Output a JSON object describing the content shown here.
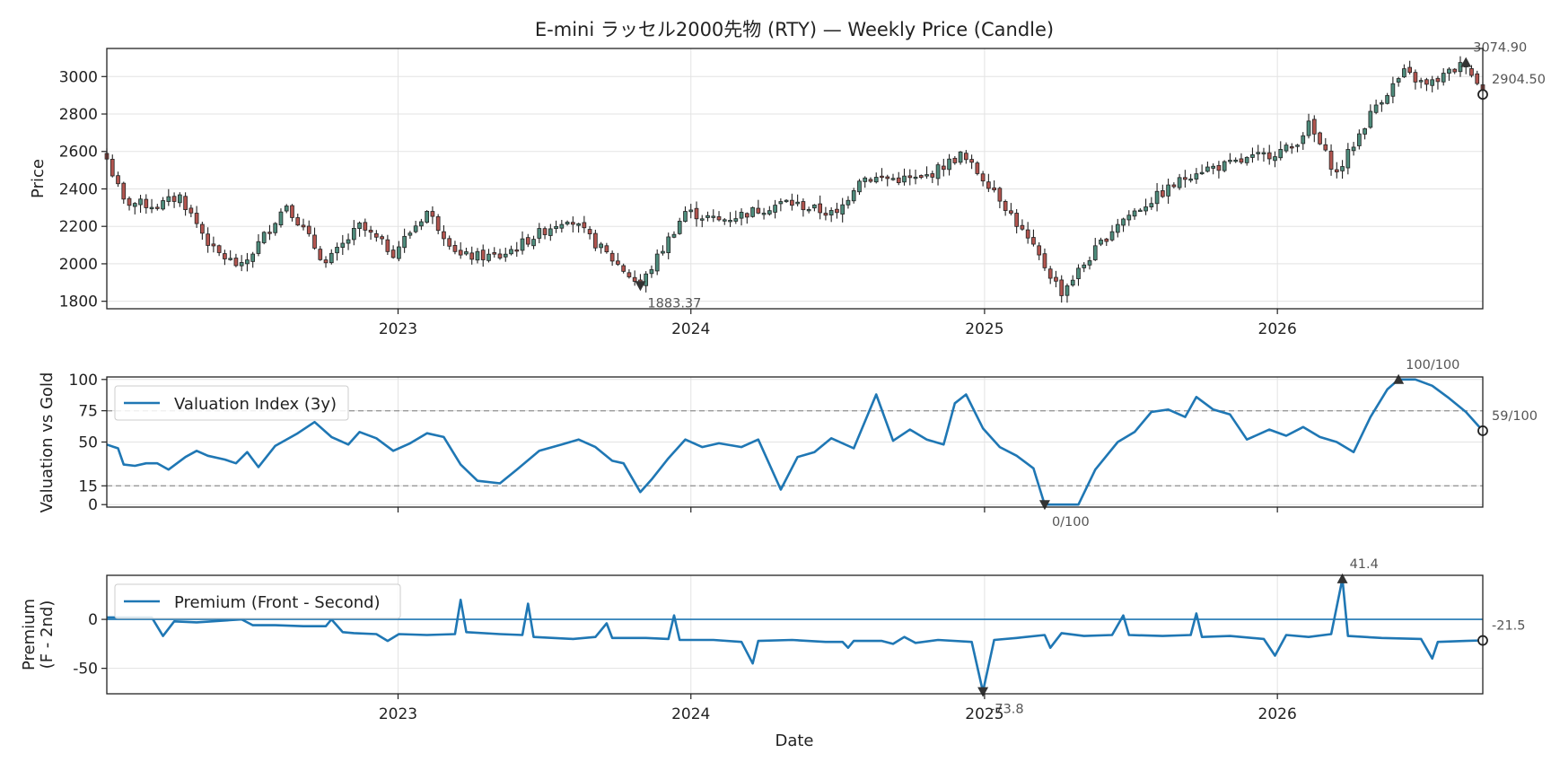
{
  "chart_data": [
    {
      "type": "candlestick",
      "title": "E-mini ラッセル2000先物 (RTY) — Weekly Price (Candle)",
      "ylabel": "Price",
      "xlabel": "",
      "x_ticks": [
        "2023",
        "2024",
        "2025",
        "2026"
      ],
      "y_ticks": [
        1800,
        2000,
        2200,
        2400,
        2600,
        2800,
        3000
      ],
      "ylim": [
        1760,
        3150
      ],
      "x_range": [
        "2022-01-03",
        "2026-09-14"
      ],
      "grid": true,
      "up_color": "#4e8c7c",
      "down_color": "#b3554f",
      "close_keypoints": [
        [
          "2022-01-03",
          2560
        ],
        [
          "2022-01-24",
          2330
        ],
        [
          "2022-03-07",
          2310
        ],
        [
          "2022-04-04",
          2360
        ],
        [
          "2022-05-16",
          2070
        ],
        [
          "2022-06-20",
          1980
        ],
        [
          "2022-08-15",
          2320
        ],
        [
          "2022-10-03",
          2000
        ],
        [
          "2022-11-14",
          2200
        ],
        [
          "2022-12-26",
          2060
        ],
        [
          "2023-02-06",
          2280
        ],
        [
          "2023-03-20",
          2040
        ],
        [
          "2023-05-08",
          2040
        ],
        [
          "2023-07-31",
          2250
        ],
        [
          "2023-10-30",
          1883
        ],
        [
          "2023-12-25",
          2280
        ],
        [
          "2024-02-05",
          2230
        ],
        [
          "2024-04-29",
          2330
        ],
        [
          "2024-07-01",
          2260
        ],
        [
          "2024-07-29",
          2460
        ],
        [
          "2024-10-14",
          2450
        ],
        [
          "2024-12-02",
          2580
        ],
        [
          "2025-01-13",
          2400
        ],
        [
          "2025-04-07",
          1850
        ],
        [
          "2025-06-16",
          2220
        ],
        [
          "2025-09-22",
          2500
        ],
        [
          "2025-11-03",
          2530
        ],
        [
          "2026-01-19",
          2620
        ],
        [
          "2026-02-09",
          2740
        ],
        [
          "2026-03-16",
          2480
        ],
        [
          "2026-05-04",
          2850
        ],
        [
          "2026-06-08",
          3020
        ],
        [
          "2026-07-06",
          2950
        ],
        [
          "2026-08-24",
          3074.9
        ],
        [
          "2026-09-14",
          2904.5
        ]
      ],
      "annotations": [
        {
          "label": "3074.90",
          "date": "2026-08-24",
          "value": 3074.9,
          "marker": "max"
        },
        {
          "label": "2904.50",
          "date": "2026-09-14",
          "value": 2904.5,
          "marker": "last"
        },
        {
          "label": "1883.37",
          "date": "2023-10-30",
          "value": 1883.37,
          "marker": "min"
        }
      ]
    },
    {
      "type": "line",
      "ylabel": "Valuation vs Gold",
      "y_ticks": [
        0,
        15,
        50,
        75,
        100
      ],
      "ylim": [
        -2,
        102
      ],
      "reference_lines": [
        75,
        15
      ],
      "grid": true,
      "legend": "top-left",
      "series": [
        {
          "name": "Valuation Index (3y)",
          "color": "#1f77b4",
          "points": [
            [
              "2022-01-03",
              48
            ],
            [
              "2022-01-17",
              45
            ],
            [
              "2022-01-24",
              32
            ],
            [
              "2022-02-07",
              31
            ],
            [
              "2022-02-21",
              33
            ],
            [
              "2022-03-07",
              33
            ],
            [
              "2022-03-21",
              28
            ],
            [
              "2022-04-11",
              38
            ],
            [
              "2022-04-25",
              43
            ],
            [
              "2022-05-09",
              39
            ],
            [
              "2022-05-30",
              36
            ],
            [
              "2022-06-13",
              33
            ],
            [
              "2022-06-27",
              42
            ],
            [
              "2022-07-11",
              30
            ],
            [
              "2022-08-01",
              47
            ],
            [
              "2022-08-29",
              57
            ],
            [
              "2022-09-19",
              66
            ],
            [
              "2022-10-10",
              54
            ],
            [
              "2022-10-31",
              48
            ],
            [
              "2022-11-14",
              58
            ],
            [
              "2022-12-05",
              53
            ],
            [
              "2022-12-26",
              43
            ],
            [
              "2023-01-16",
              49
            ],
            [
              "2023-02-06",
              57
            ],
            [
              "2023-02-27",
              54
            ],
            [
              "2023-03-20",
              32
            ],
            [
              "2023-04-10",
              19
            ],
            [
              "2023-05-08",
              17
            ],
            [
              "2023-05-29",
              28
            ],
            [
              "2023-06-26",
              43
            ],
            [
              "2023-07-24",
              48
            ],
            [
              "2023-08-14",
              52
            ],
            [
              "2023-09-04",
              46
            ],
            [
              "2023-09-25",
              35
            ],
            [
              "2023-10-09",
              33
            ],
            [
              "2023-10-30",
              10
            ],
            [
              "2023-11-13",
              20
            ],
            [
              "2023-12-04",
              37
            ],
            [
              "2023-12-25",
              52
            ],
            [
              "2024-01-15",
              46
            ],
            [
              "2024-02-05",
              49
            ],
            [
              "2024-03-04",
              46
            ],
            [
              "2024-03-25",
              52
            ],
            [
              "2024-04-22",
              12
            ],
            [
              "2024-05-13",
              38
            ],
            [
              "2024-06-03",
              42
            ],
            [
              "2024-06-24",
              53
            ],
            [
              "2024-07-22",
              45
            ],
            [
              "2024-08-19",
              88
            ],
            [
              "2024-09-09",
              51
            ],
            [
              "2024-09-30",
              60
            ],
            [
              "2024-10-21",
              52
            ],
            [
              "2024-11-11",
              48
            ],
            [
              "2024-11-25",
              81
            ],
            [
              "2024-12-09",
              88
            ],
            [
              "2024-12-30",
              61
            ],
            [
              "2025-01-20",
              46
            ],
            [
              "2025-02-10",
              39
            ],
            [
              "2025-03-03",
              29
            ],
            [
              "2025-03-17",
              0
            ],
            [
              "2025-04-14",
              0
            ],
            [
              "2025-04-28",
              0
            ],
            [
              "2025-05-19",
              28
            ],
            [
              "2025-06-16",
              50
            ],
            [
              "2025-07-07",
              58
            ],
            [
              "2025-07-28",
              74
            ],
            [
              "2025-08-18",
              76
            ],
            [
              "2025-09-08",
              70
            ],
            [
              "2025-09-22",
              86
            ],
            [
              "2025-10-13",
              76
            ],
            [
              "2025-11-03",
              72
            ],
            [
              "2025-11-24",
              52
            ],
            [
              "2025-12-22",
              60
            ],
            [
              "2026-01-12",
              55
            ],
            [
              "2026-02-02",
              62
            ],
            [
              "2026-02-23",
              54
            ],
            [
              "2026-03-16",
              50
            ],
            [
              "2026-04-06",
              42
            ],
            [
              "2026-04-27",
              70
            ],
            [
              "2026-05-18",
              92
            ],
            [
              "2026-06-01",
              100
            ],
            [
              "2026-06-22",
              100
            ],
            [
              "2026-07-13",
              95
            ],
            [
              "2026-08-03",
              85
            ],
            [
              "2026-08-24",
              74
            ],
            [
              "2026-09-14",
              59
            ]
          ]
        }
      ],
      "annotations": [
        {
          "label": "100/100",
          "date": "2026-06-01",
          "value": 100,
          "marker": "max"
        },
        {
          "label": "0/100",
          "date": "2025-03-17",
          "value": 0,
          "marker": "min"
        },
        {
          "label": "59/100",
          "date": "2026-09-14",
          "value": 59,
          "marker": "last"
        }
      ]
    },
    {
      "type": "line",
      "ylabel": "Premium\n(F - 2nd)",
      "xlabel": "Date",
      "x_ticks": [
        "2023",
        "2024",
        "2025",
        "2026"
      ],
      "y_ticks": [
        -50,
        0
      ],
      "ylim": [
        -76,
        45
      ],
      "reference_lines": [
        0
      ],
      "grid": true,
      "legend": "top-left",
      "series": [
        {
          "name": "Premium (Front - Second)",
          "color": "#1f77b4",
          "points": [
            [
              "2022-01-03",
              2
            ],
            [
              "2022-02-28",
              2
            ],
            [
              "2022-03-14",
              -17
            ],
            [
              "2022-03-28",
              -2
            ],
            [
              "2022-04-25",
              -3
            ],
            [
              "2022-06-20",
              0
            ],
            [
              "2022-07-04",
              -6
            ],
            [
              "2022-08-01",
              -6
            ],
            [
              "2022-09-05",
              -7
            ],
            [
              "2022-10-03",
              -7
            ],
            [
              "2022-10-10",
              0
            ],
            [
              "2022-10-24",
              -13
            ],
            [
              "2022-11-07",
              -14
            ],
            [
              "2022-12-05",
              -15
            ],
            [
              "2022-12-19",
              -22
            ],
            [
              "2023-01-02",
              -15
            ],
            [
              "2023-02-06",
              -16
            ],
            [
              "2023-03-13",
              -15
            ],
            [
              "2023-03-20",
              20
            ],
            [
              "2023-03-27",
              -13
            ],
            [
              "2023-05-08",
              -15
            ],
            [
              "2023-06-05",
              -16
            ],
            [
              "2023-06-12",
              16
            ],
            [
              "2023-06-19",
              -18
            ],
            [
              "2023-08-07",
              -20
            ],
            [
              "2023-09-04",
              -18
            ],
            [
              "2023-09-18",
              -4
            ],
            [
              "2023-09-25",
              -19
            ],
            [
              "2023-11-06",
              -19
            ],
            [
              "2023-12-04",
              -20
            ],
            [
              "2023-12-11",
              4
            ],
            [
              "2023-12-18",
              -21
            ],
            [
              "2024-01-29",
              -21
            ],
            [
              "2024-03-04",
              -23
            ],
            [
              "2024-03-18",
              -45
            ],
            [
              "2024-03-25",
              -22
            ],
            [
              "2024-05-06",
              -21
            ],
            [
              "2024-06-17",
              -23
            ],
            [
              "2024-07-08",
              -23
            ],
            [
              "2024-07-15",
              -29
            ],
            [
              "2024-07-22",
              -22
            ],
            [
              "2024-08-26",
              -22
            ],
            [
              "2024-09-09",
              -25
            ],
            [
              "2024-09-23",
              -18
            ],
            [
              "2024-10-07",
              -24
            ],
            [
              "2024-11-04",
              -21
            ],
            [
              "2024-12-16",
              -23
            ],
            [
              "2024-12-30",
              -73.8
            ],
            [
              "2025-01-13",
              -21
            ],
            [
              "2025-02-10",
              -19
            ],
            [
              "2025-03-17",
              -16
            ],
            [
              "2025-03-24",
              -29
            ],
            [
              "2025-04-07",
              -14
            ],
            [
              "2025-05-05",
              -17
            ],
            [
              "2025-06-09",
              -16
            ],
            [
              "2025-06-23",
              4
            ],
            [
              "2025-06-30",
              -16
            ],
            [
              "2025-08-11",
              -17
            ],
            [
              "2025-09-15",
              -16
            ],
            [
              "2025-09-22",
              6
            ],
            [
              "2025-09-29",
              -18
            ],
            [
              "2025-11-03",
              -17
            ],
            [
              "2025-12-15",
              -20
            ],
            [
              "2025-12-29",
              -37
            ],
            [
              "2026-01-12",
              -16
            ],
            [
              "2026-02-09",
              -18
            ],
            [
              "2026-03-09",
              -15
            ],
            [
              "2026-03-23",
              41.4
            ],
            [
              "2026-03-30",
              -17
            ],
            [
              "2026-05-11",
              -19
            ],
            [
              "2026-06-29",
              -20
            ],
            [
              "2026-07-13",
              -40
            ],
            [
              "2026-07-20",
              -23
            ],
            [
              "2026-08-24",
              -22
            ],
            [
              "2026-09-14",
              -21.5
            ]
          ]
        }
      ],
      "annotations": [
        {
          "label": "41.4",
          "date": "2026-03-23",
          "value": 41.4,
          "marker": "max"
        },
        {
          "label": "-73.8",
          "date": "2024-12-30",
          "value": -73.8,
          "marker": "min"
        },
        {
          "label": "-21.5",
          "date": "2026-09-14",
          "value": -21.5,
          "marker": "last"
        }
      ]
    }
  ]
}
